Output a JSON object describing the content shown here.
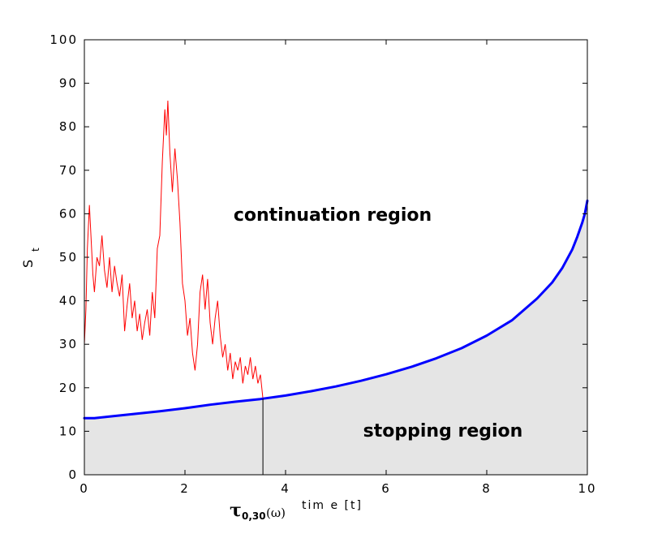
{
  "chart_data": {
    "type": "line",
    "xlabel": "tim e  [t]",
    "ylabel": "S",
    "ylabel_subscript": "t",
    "xlim": [
      0,
      10
    ],
    "ylim": [
      0,
      100
    ],
    "x_ticks": [
      0,
      2,
      4,
      6,
      8,
      10
    ],
    "y_ticks": [
      0,
      10,
      20,
      30,
      40,
      50,
      60,
      70,
      80,
      90,
      100
    ],
    "grid": false,
    "annotations": {
      "continuation_label": "continuation region",
      "stopping_label": "stopping region",
      "stopping_time_symbol": "τ",
      "stopping_time_subscript": "0,30",
      "stopping_time_arg": "(ω)"
    },
    "stopping_time_x": 3.55,
    "colors": {
      "boundary": "#0000ff",
      "path": "#ff0000",
      "stopping_fill": "#e5e5e5",
      "marker_line": "#000000"
    },
    "series": [
      {
        "type": "line",
        "x": [
          0,
          0.2,
          0.5,
          1,
          1.5,
          2,
          2.5,
          3,
          3.5,
          4,
          4.5,
          5,
          5.5,
          6,
          6.5,
          7,
          7.5,
          8,
          8.5,
          9,
          9.3,
          9.5,
          9.7,
          9.8,
          9.9,
          9.95,
          10
        ],
        "y": [
          13,
          13,
          13.4,
          14,
          14.6,
          15.3,
          16.1,
          16.8,
          17.4,
          18.2,
          19.2,
          20.3,
          21.6,
          23.1,
          24.8,
          26.8,
          29.1,
          32,
          35.5,
          40.5,
          44.2,
          47.5,
          51.8,
          54.7,
          58,
          60,
          63
        ]
      },
      {
        "type": "line",
        "x": [
          0,
          0.03,
          0.06,
          0.1,
          0.13,
          0.17,
          0.2,
          0.25,
          0.3,
          0.35,
          0.4,
          0.45,
          0.5,
          0.55,
          0.6,
          0.65,
          0.7,
          0.75,
          0.8,
          0.85,
          0.9,
          0.95,
          1.0,
          1.05,
          1.1,
          1.15,
          1.2,
          1.25,
          1.3,
          1.35,
          1.4,
          1.45,
          1.5,
          1.55,
          1.6,
          1.63,
          1.66,
          1.7,
          1.75,
          1.8,
          1.85,
          1.9,
          1.95,
          2.0,
          2.05,
          2.1,
          2.15,
          2.2,
          2.25,
          2.3,
          2.35,
          2.4,
          2.45,
          2.5,
          2.55,
          2.6,
          2.65,
          2.7,
          2.75,
          2.8,
          2.85,
          2.9,
          2.95,
          3.0,
          3.05,
          3.1,
          3.15,
          3.2,
          3.25,
          3.3,
          3.35,
          3.4,
          3.45,
          3.5,
          3.55
        ],
        "y": [
          30,
          38,
          52,
          62,
          55,
          46,
          42,
          50,
          48,
          55,
          47,
          43,
          50,
          42,
          48,
          44,
          41,
          46,
          33,
          39,
          44,
          36,
          40,
          33,
          37,
          31,
          35,
          38,
          32,
          42,
          36,
          52,
          55,
          72,
          84,
          78,
          86,
          74,
          65,
          75,
          68,
          58,
          44,
          40,
          32,
          36,
          28,
          24,
          30,
          42,
          46,
          38,
          45,
          35,
          30,
          36,
          40,
          32,
          27,
          30,
          24,
          28,
          22,
          26,
          24,
          27,
          21,
          25,
          23,
          27,
          22,
          25,
          21,
          23,
          17.5
        ]
      }
    ]
  }
}
